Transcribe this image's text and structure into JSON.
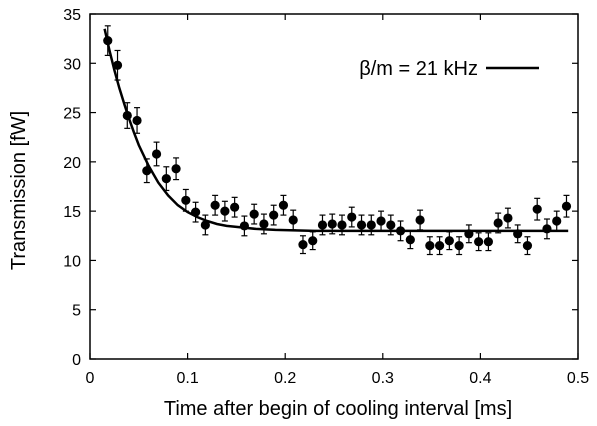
{
  "chart_data": {
    "type": "scatter",
    "title": "",
    "xlabel": "Time after begin of cooling interval [ms]",
    "ylabel": "Transmission [fW]",
    "xlim": [
      0,
      0.5
    ],
    "ylim": [
      0,
      35
    ],
    "xticks": [
      "0",
      "0.1",
      "0.2",
      "0.3",
      "0.4",
      "0.5"
    ],
    "yticks": [
      "0",
      "5",
      "10",
      "15",
      "20",
      "25",
      "30",
      "35"
    ],
    "grid": false,
    "legend": {
      "placement": "top-right",
      "entries": [
        "β/m = 21 kHz"
      ]
    },
    "series": [
      {
        "kind": "points-with-error-bars",
        "x": [
          0.0182,
          0.0282,
          0.0382,
          0.0482,
          0.0582,
          0.0682,
          0.0782,
          0.0882,
          0.0982,
          0.1082,
          0.1182,
          0.1282,
          0.1382,
          0.1482,
          0.1582,
          0.1682,
          0.1782,
          0.1882,
          0.1982,
          0.2082,
          0.2182,
          0.2282,
          0.2382,
          0.2482,
          0.2582,
          0.2682,
          0.2782,
          0.2882,
          0.2982,
          0.3082,
          0.3182,
          0.3282,
          0.3382,
          0.3482,
          0.3582,
          0.3682,
          0.3782,
          0.3882,
          0.3982,
          0.4082,
          0.4182,
          0.4282,
          0.4382,
          0.4482,
          0.4582,
          0.4682,
          0.4782,
          0.4882
        ],
        "y": [
          32.3,
          29.8,
          24.7,
          24.2,
          19.1,
          20.8,
          18.3,
          19.3,
          16.1,
          14.9,
          13.6,
          15.6,
          15.0,
          15.4,
          13.5,
          14.7,
          13.7,
          14.6,
          15.6,
          14.1,
          11.6,
          12.0,
          13.6,
          13.7,
          13.6,
          14.4,
          13.6,
          13.6,
          14.0,
          13.6,
          13.0,
          12.1,
          14.1,
          11.5,
          11.5,
          12.0,
          11.5,
          12.7,
          11.9,
          11.9,
          13.8,
          14.3,
          12.7,
          11.5,
          15.2,
          13.2,
          14.0,
          15.5
        ],
        "error": [
          1.5,
          1.5,
          1.3,
          1.3,
          1.2,
          1.2,
          1.2,
          1.1,
          1.1,
          1.0,
          1.0,
          1.0,
          1.0,
          1.0,
          1.0,
          1.0,
          1.0,
          1.0,
          1.0,
          1.0,
          0.9,
          0.9,
          1.0,
          1.0,
          1.0,
          1.0,
          1.0,
          1.0,
          1.0,
          1.0,
          1.0,
          0.9,
          1.0,
          0.9,
          0.9,
          0.9,
          0.9,
          0.9,
          0.9,
          0.9,
          1.0,
          1.0,
          0.9,
          0.9,
          1.1,
          1.0,
          1.0,
          1.1
        ]
      },
      {
        "name": "β/m = 21 kHz",
        "kind": "fit-line",
        "x": [
          0.015,
          0.02,
          0.025,
          0.03,
          0.035,
          0.04,
          0.045,
          0.05,
          0.06,
          0.07,
          0.08,
          0.09,
          0.1,
          0.11,
          0.12,
          0.13,
          0.14,
          0.15,
          0.17,
          0.19,
          0.21,
          0.23,
          0.25,
          0.3,
          0.35,
          0.4,
          0.45,
          0.49
        ],
        "y": [
          33.5,
          31.3,
          29.3,
          27.5,
          25.9,
          24.4,
          23.0,
          21.7,
          19.6,
          17.9,
          16.6,
          15.6,
          14.9,
          14.4,
          14.0,
          13.7,
          13.5,
          13.4,
          13.2,
          13.1,
          13.05,
          13.0,
          13.0,
          13.0,
          13.0,
          13.0,
          13.0,
          13.0
        ]
      }
    ]
  }
}
